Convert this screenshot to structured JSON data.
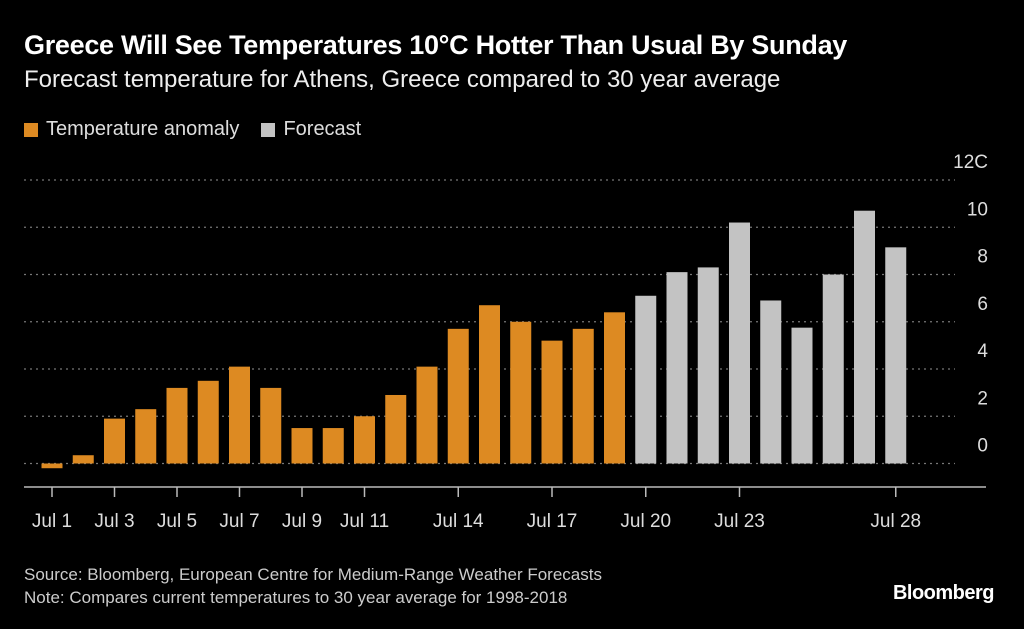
{
  "chart_data": {
    "type": "bar",
    "title": "Greece Will See Temperatures 10°C Hotter Than Usual By Sunday",
    "subtitle": "Forecast temperature for Athens, Greece compared to 30 year average",
    "categories": [
      "Jul 1",
      "Jul 2",
      "Jul 3",
      "Jul 4",
      "Jul 5",
      "Jul 6",
      "Jul 7",
      "Jul 8",
      "Jul 9",
      "Jul 10",
      "Jul 11",
      "Jul 12",
      "Jul 13",
      "Jul 14",
      "Jul 15",
      "Jul 16",
      "Jul 17",
      "Jul 18",
      "Jul 19",
      "Jul 20",
      "Jul 21",
      "Jul 22",
      "Jul 23",
      "Jul 24",
      "Jul 25",
      "Jul 26",
      "Jul 27",
      "Jul 28"
    ],
    "series": [
      {
        "name": "Temperature anomaly",
        "color": "#dd8a22",
        "values": [
          -0.2,
          0.35,
          1.9,
          2.3,
          3.2,
          3.5,
          4.1,
          3.2,
          1.5,
          1.5,
          2.0,
          2.9,
          4.1,
          5.7,
          6.7,
          6.0,
          5.2,
          5.7,
          6.4,
          null,
          null,
          null,
          null,
          null,
          null,
          null,
          null,
          null
        ]
      },
      {
        "name": "Forecast",
        "color": "#c3c3c3",
        "values": [
          null,
          null,
          null,
          null,
          null,
          null,
          null,
          null,
          null,
          null,
          null,
          null,
          null,
          null,
          null,
          null,
          null,
          null,
          null,
          7.1,
          8.1,
          8.3,
          10.2,
          6.9,
          5.75,
          8.0,
          10.7,
          9.15
        ]
      }
    ],
    "x_tick_labels": [
      {
        "category": "Jul 1",
        "label": "Jul 1"
      },
      {
        "category": "Jul 3",
        "label": "Jul 3"
      },
      {
        "category": "Jul 5",
        "label": "Jul 5"
      },
      {
        "category": "Jul 7",
        "label": "Jul 7"
      },
      {
        "category": "Jul 9",
        "label": "Jul 9"
      },
      {
        "category": "Jul 11",
        "label": "Jul 11"
      },
      {
        "category": "Jul 14",
        "label": "Jul 14"
      },
      {
        "category": "Jul 17",
        "label": "Jul 17"
      },
      {
        "category": "Jul 20",
        "label": "Jul 20"
      },
      {
        "category": "Jul 23",
        "label": "Jul 23"
      },
      {
        "category": "Jul 28",
        "label": "Jul 28"
      }
    ],
    "y_ticks": [
      0,
      2,
      4,
      6,
      8,
      10,
      12
    ],
    "y_tick_labels": [
      "0",
      "2",
      "4",
      "6",
      "8",
      "10",
      "12C"
    ],
    "ylim": [
      0,
      12
    ],
    "y_axis_side": "right",
    "grid": true,
    "legend_placement": "top-left",
    "xlabel": "",
    "ylabel": ""
  },
  "footer": {
    "source": "Source: Bloomberg, European Centre for Medium-Range Weather Forecasts",
    "note": "Note: Compares current temperatures to 30 year average for 1998-2018",
    "logo": "Bloomberg"
  }
}
